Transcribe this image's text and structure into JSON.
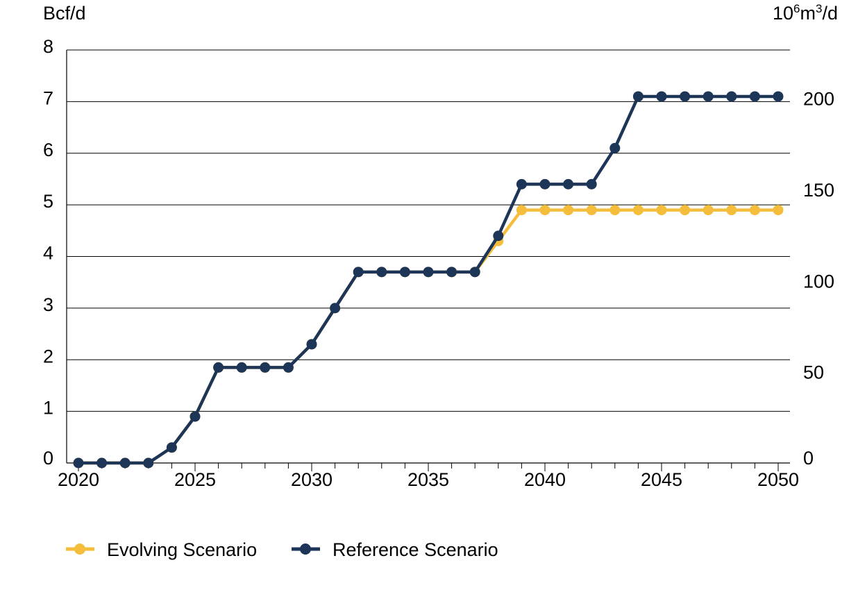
{
  "chart_data": {
    "type": "line",
    "xlabel": "",
    "ylabel_left": "Bcf/d",
    "ylabel_right_base": "10",
    "ylabel_right_sup1": "6",
    "ylabel_right_mid": "m",
    "ylabel_right_sup2": "3",
    "ylabel_right_end": "/d",
    "xlim": [
      2020,
      2050
    ],
    "ylim": [
      0,
      8
    ],
    "x_ticks": [
      2020,
      2025,
      2030,
      2035,
      2040,
      2045,
      2050
    ],
    "x_tick_labels": [
      "2020",
      "2025",
      "2030",
      "2035",
      "2040",
      "2045",
      "2050"
    ],
    "y_ticks": [
      0,
      1,
      2,
      3,
      4,
      5,
      6,
      7,
      8
    ],
    "y_tick_labels": [
      "0",
      "1",
      "2",
      "3",
      "4",
      "5",
      "6",
      "7",
      "8"
    ],
    "y_right_ticks": [
      0,
      50,
      100,
      150,
      200
    ],
    "y_right_tick_labels": [
      "0",
      "50",
      "100",
      "150",
      "200"
    ],
    "y_right_max": 226.5,
    "grid": "horizontal",
    "legend_position": "bottom-left",
    "x": [
      2020,
      2021,
      2022,
      2023,
      2024,
      2025,
      2026,
      2027,
      2028,
      2029,
      2030,
      2031,
      2032,
      2033,
      2034,
      2035,
      2036,
      2037,
      2038,
      2039,
      2040,
      2041,
      2042,
      2043,
      2044,
      2045,
      2046,
      2047,
      2048,
      2049,
      2050
    ],
    "series": [
      {
        "name": "Evolving Scenario",
        "color": "#F5BD3C",
        "values": [
          0,
          0,
          0,
          0,
          0.3,
          0.9,
          1.85,
          1.85,
          1.85,
          1.85,
          2.3,
          3.0,
          3.7,
          3.7,
          3.7,
          3.7,
          3.7,
          3.7,
          4.3,
          4.9,
          4.9,
          4.9,
          4.9,
          4.9,
          4.9,
          4.9,
          4.9,
          4.9,
          4.9,
          4.9,
          4.9
        ]
      },
      {
        "name": "Reference Scenario",
        "color": "#1D3557",
        "values": [
          0,
          0,
          0,
          0,
          0.3,
          0.9,
          1.85,
          1.85,
          1.85,
          1.85,
          2.3,
          3.0,
          3.7,
          3.7,
          3.7,
          3.7,
          3.7,
          3.7,
          4.4,
          5.4,
          5.4,
          5.4,
          5.4,
          6.1,
          7.1,
          7.1,
          7.1,
          7.1,
          7.1,
          7.1,
          7.1
        ]
      }
    ]
  }
}
